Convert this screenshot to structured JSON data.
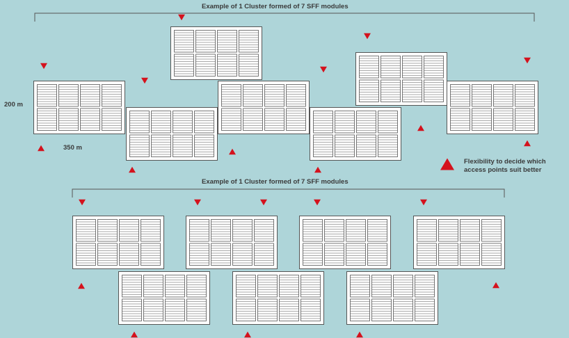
{
  "top_section": {
    "title": "Example of 1 Cluster formed of 7 SFF modules",
    "dimension_height": "200 m",
    "dimension_width": "350 m",
    "module_count": 7
  },
  "bottom_section": {
    "title": "Example of 1 Cluster formed of 7 SFF modules",
    "module_count": 7
  },
  "legend": {
    "icon": "red-triangle-icon",
    "line1": "Flexibility to decide which",
    "line2": "access points suit better"
  },
  "colors": {
    "background": "#aed5d9",
    "module_fill": "#ffffff",
    "module_stroke": "#555555",
    "access_point": "#d4121d",
    "bracket": "#555555",
    "text": "#3a3a3a"
  }
}
